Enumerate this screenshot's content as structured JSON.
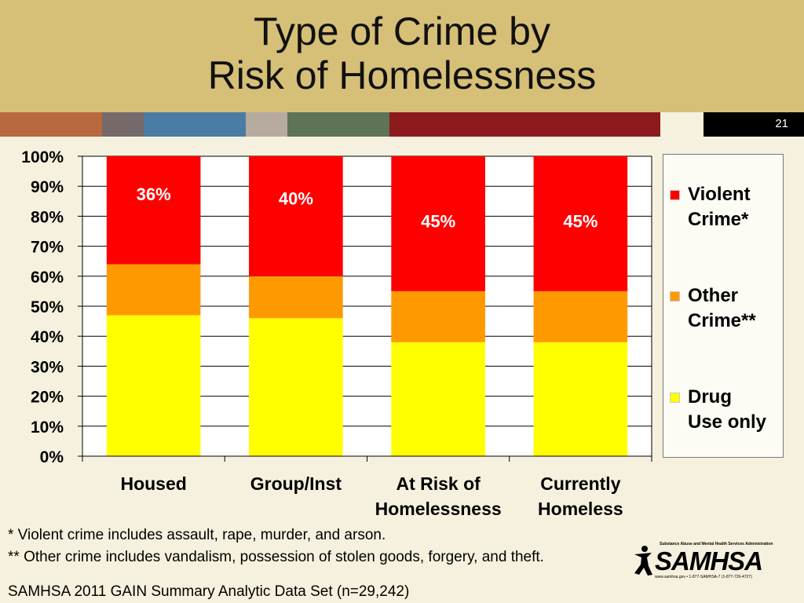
{
  "slide": {
    "title_line1": "Type of Crime by",
    "title_line2": "Risk of Homelessness",
    "slide_number": "21"
  },
  "colors": {
    "title_band": "#d6bf77",
    "background": "#f5f1de",
    "stripes": [
      "#b86a3e",
      "#76696a",
      "#4b7ca4",
      "#b6ab9e",
      "#5f7356",
      "#8c1a1d",
      "#f5f1de"
    ]
  },
  "chart_data": {
    "type": "bar",
    "stacked": true,
    "categories": [
      [
        "Housed"
      ],
      [
        "Group/Inst"
      ],
      [
        "At Risk of",
        "Homelessness"
      ],
      [
        "Currently",
        "Homeless"
      ]
    ],
    "series": [
      {
        "name": "Drug Use only",
        "legend_lines": [
          "Drug",
          "Use only"
        ],
        "color": "#ffff00",
        "values": [
          47,
          46,
          38,
          38
        ]
      },
      {
        "name": "Other Crime**",
        "legend_lines": [
          "Other",
          "Crime**"
        ],
        "color": "#ff9900",
        "values": [
          17,
          14,
          17,
          17
        ]
      },
      {
        "name": "Violent Crime*",
        "legend_lines": [
          "Violent",
          "Crime*"
        ],
        "color": "#ff0000",
        "values": [
          36,
          40,
          45,
          45
        ]
      }
    ],
    "data_labels": [
      "36%",
      "40%",
      "45%",
      "45%"
    ],
    "y_ticks": [
      "0%",
      "10%",
      "20%",
      "30%",
      "40%",
      "50%",
      "60%",
      "70%",
      "80%",
      "90%",
      "100%"
    ],
    "ylim": [
      0,
      100
    ],
    "grid": true,
    "legend_position": "right"
  },
  "footnotes": {
    "violent": "* Violent crime includes assault, rape, murder, and arson.",
    "other": "** Other crime includes vandalism, possession of stolen goods, forgery, and theft.",
    "source": "SAMHSA 2011 GAIN Summary Analytic Data Set (n=29,242)"
  },
  "logo": {
    "org": "Substance Abuse and Mental Health Services Administration",
    "wordmark": "SAMHSA",
    "contact": "www.samhsa.gov • 1-877-SAMHSA-7 (1-877-726-4727)"
  }
}
